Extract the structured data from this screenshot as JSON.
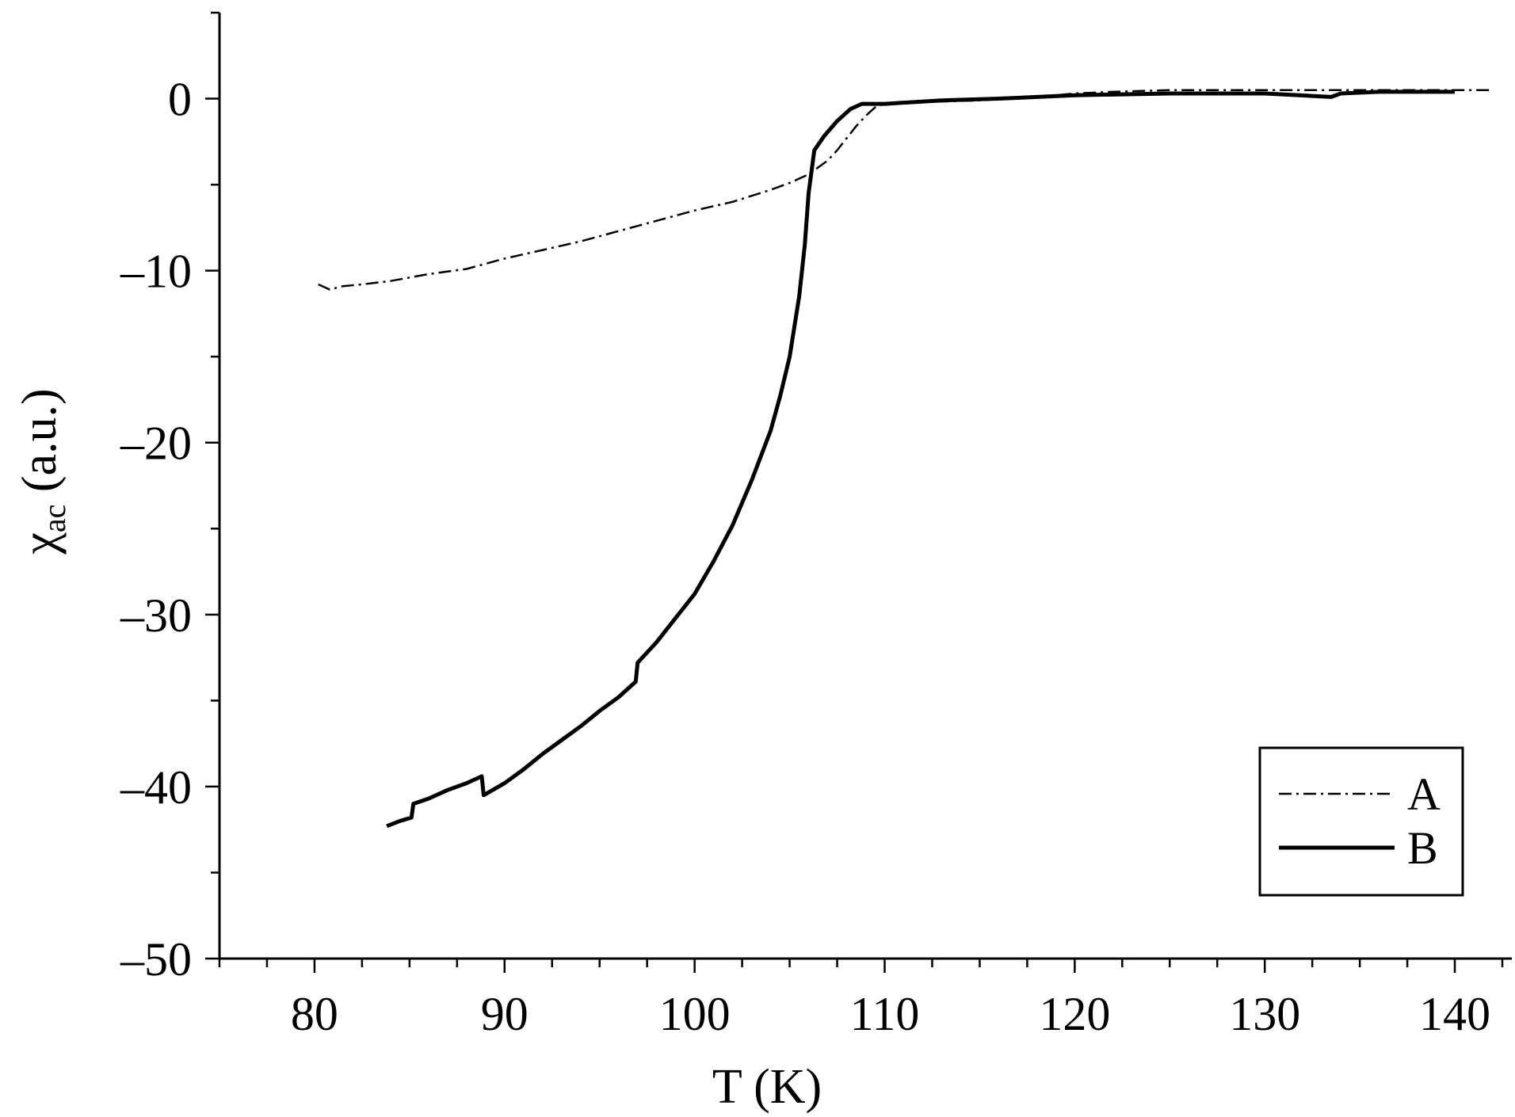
{
  "chart_data": {
    "type": "line",
    "title": "",
    "xlabel": "T (K)",
    "ylabel_main": "χ",
    "ylabel_sub": "ac",
    "ylabel_unit": " (a.u.)",
    "xlim": [
      75,
      143
    ],
    "ylim": [
      -50,
      5
    ],
    "x_ticks": [
      80,
      90,
      100,
      110,
      120,
      130,
      140
    ],
    "x_tick_labels": [
      "80",
      "90",
      "100",
      "110",
      "120",
      "130",
      "140"
    ],
    "y_ticks": [
      0,
      -10,
      -20,
      -30,
      -40,
      -50
    ],
    "y_tick_labels": [
      "0",
      "–10",
      "–20",
      "–30",
      "–40",
      "–50"
    ],
    "x_minor_step": 2.5,
    "y_minor_step": 5,
    "grid": false,
    "legend_position": "bottom-right",
    "series": [
      {
        "name": "A",
        "style": "dash-dot",
        "points": [
          [
            80.2,
            -10.8
          ],
          [
            80.8,
            -11.1
          ],
          [
            81.5,
            -10.9
          ],
          [
            82.5,
            -10.8
          ],
          [
            84,
            -10.6
          ],
          [
            86,
            -10.2
          ],
          [
            88,
            -9.9
          ],
          [
            90,
            -9.3
          ],
          [
            92,
            -8.8
          ],
          [
            94,
            -8.3
          ],
          [
            96,
            -7.7
          ],
          [
            98,
            -7.1
          ],
          [
            100,
            -6.5
          ],
          [
            102,
            -6.0
          ],
          [
            104,
            -5.3
          ],
          [
            105,
            -4.9
          ],
          [
            106,
            -4.4
          ],
          [
            107,
            -3.6
          ],
          [
            107.5,
            -3.0
          ],
          [
            108,
            -2.3
          ],
          [
            108.5,
            -1.6
          ],
          [
            109,
            -1.0
          ],
          [
            109.5,
            -0.5
          ],
          [
            110,
            -0.3
          ],
          [
            112,
            -0.2
          ],
          [
            115,
            -0.1
          ],
          [
            118,
            0.1
          ],
          [
            120,
            0.3
          ],
          [
            122,
            0.4
          ],
          [
            125,
            0.5
          ],
          [
            130,
            0.5
          ],
          [
            135,
            0.5
          ],
          [
            140,
            0.5
          ],
          [
            142,
            0.5
          ]
        ]
      },
      {
        "name": "B",
        "style": "solid",
        "points": [
          [
            83.8,
            -42.3
          ],
          [
            84.5,
            -42.0
          ],
          [
            85.1,
            -41.8
          ],
          [
            85.2,
            -41.0
          ],
          [
            86,
            -40.7
          ],
          [
            87,
            -40.2
          ],
          [
            88,
            -39.8
          ],
          [
            88.8,
            -39.4
          ],
          [
            88.9,
            -40.5
          ],
          [
            90,
            -39.8
          ],
          [
            91,
            -39.0
          ],
          [
            92,
            -38.1
          ],
          [
            93,
            -37.3
          ],
          [
            94,
            -36.5
          ],
          [
            95,
            -35.6
          ],
          [
            96,
            -34.8
          ],
          [
            96.9,
            -33.9
          ],
          [
            97,
            -32.8
          ],
          [
            98,
            -31.6
          ],
          [
            99,
            -30.2
          ],
          [
            100,
            -28.8
          ],
          [
            101,
            -26.9
          ],
          [
            102,
            -24.8
          ],
          [
            103,
            -22.2
          ],
          [
            104,
            -19.3
          ],
          [
            104.5,
            -17.3
          ],
          [
            105,
            -15.0
          ],
          [
            105.5,
            -11.5
          ],
          [
            105.8,
            -8.5
          ],
          [
            106,
            -5.5
          ],
          [
            106.3,
            -3.0
          ],
          [
            106.8,
            -2.2
          ],
          [
            107.5,
            -1.3
          ],
          [
            108.2,
            -0.6
          ],
          [
            108.8,
            -0.3
          ],
          [
            110,
            -0.3
          ],
          [
            113,
            -0.1
          ],
          [
            116,
            0.0
          ],
          [
            120,
            0.2
          ],
          [
            125,
            0.3
          ],
          [
            130,
            0.3
          ],
          [
            133.5,
            0.1
          ],
          [
            134,
            0.3
          ],
          [
            136,
            0.4
          ],
          [
            140,
            0.4
          ]
        ]
      }
    ]
  }
}
